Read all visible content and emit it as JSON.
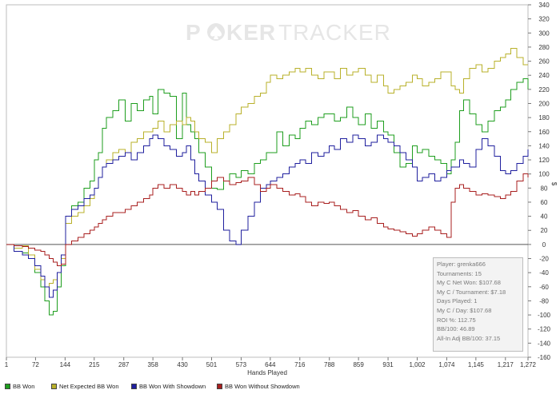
{
  "chart_data": {
    "type": "line",
    "title": "",
    "xlabel": "Hands Played",
    "ylabel": "$",
    "xlim": [
      1,
      1272
    ],
    "ylim": [
      -160,
      340
    ],
    "x_ticks": [
      1,
      72,
      144,
      215,
      287,
      358,
      430,
      501,
      573,
      644,
      716,
      788,
      859,
      931,
      1002,
      1074,
      1145,
      1217,
      1272
    ],
    "x_tick_labels": [
      "1",
      "72",
      "144",
      "215",
      "287",
      "358",
      "430",
      "501",
      "573",
      "644",
      "716",
      "788",
      "859",
      "931",
      "1,002",
      "1,074",
      "1,145",
      "1,217",
      "1,272"
    ],
    "y_ticks": [
      -160,
      -140,
      -120,
      -100,
      -80,
      -60,
      -40,
      -20,
      0,
      20,
      40,
      60,
      80,
      100,
      120,
      140,
      160,
      180,
      200,
      220,
      240,
      260,
      280,
      300,
      320,
      340
    ],
    "series": [
      {
        "name": "BB Won",
        "color": "#1e9e1e",
        "x": [
          1,
          20,
          40,
          55,
          70,
          85,
          95,
          105,
          115,
          125,
          135,
          145,
          160,
          175,
          190,
          205,
          215,
          225,
          235,
          245,
          260,
          275,
          290,
          305,
          320,
          335,
          350,
          358,
          370,
          385,
          400,
          415,
          430,
          440,
          450,
          460,
          470,
          485,
          501,
          515,
          530,
          545,
          560,
          573,
          590,
          605,
          620,
          635,
          644,
          660,
          675,
          690,
          705,
          716,
          730,
          745,
          760,
          775,
          788,
          800,
          815,
          830,
          845,
          859,
          875,
          890,
          905,
          920,
          931,
          945,
          960,
          975,
          990,
          1002,
          1015,
          1030,
          1045,
          1060,
          1074,
          1085,
          1095,
          1105,
          1115,
          1130,
          1145,
          1160,
          1175,
          1190,
          1205,
          1217,
          1230,
          1245,
          1260,
          1272
        ],
        "y": [
          0,
          -10,
          -12,
          -20,
          -40,
          -60,
          -80,
          -100,
          -95,
          -60,
          -30,
          40,
          55,
          60,
          80,
          90,
          120,
          130,
          165,
          180,
          190,
          205,
          175,
          200,
          190,
          205,
          210,
          185,
          220,
          215,
          210,
          150,
          215,
          170,
          160,
          150,
          130,
          110,
          80,
          78,
          90,
          100,
          95,
          105,
          100,
          115,
          120,
          130,
          130,
          160,
          140,
          155,
          150,
          165,
          175,
          170,
          180,
          185,
          185,
          175,
          180,
          195,
          180,
          170,
          185,
          165,
          175,
          160,
          155,
          130,
          110,
          115,
          140,
          130,
          135,
          125,
          120,
          115,
          100,
          120,
          145,
          190,
          205,
          185,
          170,
          160,
          175,
          190,
          195,
          205,
          220,
          230,
          235,
          220
        ]
      },
      {
        "name": "Net Expected BB Won",
        "color": "#b8b02a",
        "x": [
          1,
          20,
          40,
          55,
          70,
          85,
          95,
          105,
          115,
          125,
          135,
          145,
          160,
          175,
          190,
          205,
          215,
          225,
          235,
          245,
          260,
          275,
          290,
          305,
          320,
          335,
          350,
          358,
          370,
          385,
          400,
          415,
          430,
          440,
          450,
          460,
          470,
          485,
          501,
          515,
          530,
          545,
          560,
          573,
          590,
          605,
          620,
          635,
          644,
          660,
          675,
          690,
          705,
          716,
          730,
          745,
          760,
          775,
          788,
          800,
          815,
          830,
          845,
          859,
          875,
          890,
          905,
          920,
          931,
          945,
          960,
          975,
          990,
          1002,
          1015,
          1030,
          1045,
          1060,
          1074,
          1085,
          1095,
          1105,
          1115,
          1130,
          1145,
          1160,
          1175,
          1190,
          1205,
          1217,
          1230,
          1245,
          1260,
          1272
        ],
        "y": [
          0,
          -5,
          -2,
          -15,
          -35,
          -50,
          -60,
          -55,
          -50,
          -40,
          -20,
          30,
          40,
          45,
          55,
          65,
          80,
          95,
          110,
          120,
          130,
          135,
          130,
          145,
          150,
          160,
          160,
          165,
          175,
          160,
          170,
          175,
          170,
          180,
          175,
          160,
          150,
          145,
          130,
          150,
          160,
          170,
          185,
          195,
          200,
          210,
          215,
          230,
          240,
          235,
          240,
          245,
          250,
          245,
          250,
          240,
          235,
          245,
          245,
          235,
          250,
          240,
          245,
          250,
          240,
          230,
          240,
          225,
          215,
          220,
          225,
          230,
          240,
          235,
          225,
          230,
          235,
          245,
          245,
          225,
          220,
          215,
          235,
          250,
          255,
          245,
          250,
          260,
          265,
          270,
          278,
          265,
          255,
          255
        ]
      },
      {
        "name": "BB Won With Showdown",
        "color": "#1f1f9e",
        "x": [
          1,
          20,
          40,
          55,
          70,
          85,
          95,
          105,
          115,
          125,
          135,
          145,
          160,
          175,
          190,
          205,
          215,
          225,
          235,
          245,
          260,
          275,
          290,
          305,
          320,
          335,
          350,
          358,
          370,
          385,
          400,
          415,
          430,
          440,
          450,
          460,
          470,
          485,
          501,
          515,
          530,
          545,
          560,
          573,
          590,
          605,
          620,
          635,
          644,
          660,
          675,
          690,
          705,
          716,
          730,
          745,
          760,
          775,
          788,
          800,
          815,
          830,
          845,
          859,
          875,
          890,
          905,
          920,
          931,
          945,
          960,
          975,
          990,
          1002,
          1015,
          1030,
          1045,
          1060,
          1074,
          1085,
          1095,
          1105,
          1115,
          1130,
          1145,
          1160,
          1175,
          1190,
          1205,
          1217,
          1230,
          1245,
          1260,
          1272
        ],
        "y": [
          0,
          -10,
          -15,
          -20,
          -30,
          -45,
          -60,
          -75,
          -65,
          -40,
          -15,
          40,
          50,
          55,
          65,
          70,
          80,
          95,
          110,
          115,
          120,
          125,
          130,
          120,
          130,
          140,
          150,
          155,
          150,
          140,
          135,
          125,
          130,
          140,
          120,
          100,
          90,
          70,
          60,
          50,
          20,
          5,
          0,
          20,
          40,
          60,
          80,
          85,
          90,
          95,
          100,
          110,
          115,
          120,
          115,
          130,
          125,
          130,
          140,
          135,
          150,
          145,
          155,
          150,
          140,
          145,
          155,
          150,
          145,
          140,
          130,
          120,
          110,
          90,
          95,
          100,
          90,
          95,
          105,
          110,
          110,
          120,
          115,
          110,
          135,
          150,
          140,
          125,
          105,
          100,
          105,
          115,
          125,
          135
        ]
      },
      {
        "name": "BB Won Without Showdown",
        "color": "#a81f1f",
        "x": [
          1,
          20,
          40,
          55,
          70,
          85,
          95,
          105,
          115,
          125,
          135,
          145,
          160,
          175,
          190,
          205,
          215,
          225,
          235,
          245,
          260,
          275,
          290,
          305,
          320,
          335,
          350,
          358,
          370,
          385,
          400,
          415,
          430,
          440,
          450,
          460,
          470,
          485,
          501,
          515,
          530,
          545,
          560,
          573,
          590,
          605,
          620,
          635,
          644,
          660,
          675,
          690,
          705,
          716,
          730,
          745,
          760,
          775,
          788,
          800,
          815,
          830,
          845,
          859,
          875,
          890,
          905,
          920,
          931,
          945,
          960,
          975,
          990,
          1002,
          1015,
          1030,
          1045,
          1060,
          1074,
          1085,
          1095,
          1105,
          1115,
          1130,
          1145,
          1160,
          1175,
          1190,
          1205,
          1217,
          1230,
          1245,
          1260,
          1272
        ],
        "y": [
          0,
          -2,
          -3,
          -5,
          -8,
          -10,
          -15,
          -20,
          -25,
          -30,
          -28,
          0,
          5,
          10,
          15,
          20,
          25,
          30,
          35,
          40,
          45,
          45,
          50,
          55,
          60,
          65,
          70,
          80,
          85,
          80,
          85,
          80,
          75,
          70,
          75,
          70,
          75,
          80,
          90,
          95,
          90,
          85,
          88,
          90,
          95,
          85,
          75,
          80,
          85,
          80,
          75,
          70,
          72,
          68,
          60,
          55,
          60,
          58,
          60,
          55,
          50,
          45,
          48,
          40,
          35,
          38,
          30,
          25,
          22,
          20,
          18,
          15,
          12,
          15,
          20,
          25,
          20,
          15,
          10,
          60,
          80,
          85,
          80,
          75,
          70,
          72,
          70,
          68,
          65,
          70,
          75,
          90,
          100,
          95
        ]
      }
    ],
    "legend_position": "bottom",
    "grid": false
  },
  "watermark": {
    "part1": "P",
    "part2": "KER",
    "part3": "TRACKER"
  },
  "stats": [
    "Player: grenka666",
    "Tournaments: 15",
    "My C Net Won: $107.68",
    "My C / Tournament: $7.18",
    "Days Played: 1",
    "My C / Day: $107.68",
    "ROI %: 112.75",
    "BB/100: 46.89",
    "All-In Adj BB/100: 37.15"
  ]
}
